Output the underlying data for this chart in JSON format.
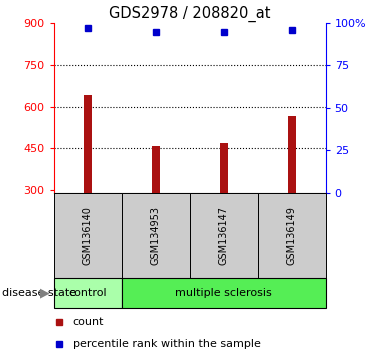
{
  "title": "GDS2978 / 208820_at",
  "samples": [
    "GSM136140",
    "GSM134953",
    "GSM136147",
    "GSM136149"
  ],
  "bar_values": [
    640,
    460,
    468,
    565
  ],
  "bar_bottom": 290,
  "percentile_values": [
    97,
    95,
    95,
    96
  ],
  "bar_color": "#aa1111",
  "point_color": "#0000cc",
  "ylim_left": [
    290,
    900
  ],
  "ylim_right": [
    0,
    100
  ],
  "yticks_left": [
    300,
    450,
    600,
    750,
    900
  ],
  "yticks_right": [
    0,
    25,
    50,
    75,
    100
  ],
  "ytick_labels_right": [
    "0",
    "25",
    "50",
    "75",
    "100%"
  ],
  "hlines": [
    450,
    600,
    750
  ],
  "group_label": "disease state",
  "control_label": "control",
  "ms_label": "multiple sclerosis",
  "control_color": "#aaffaa",
  "ms_color": "#55ee55",
  "legend_count_label": "count",
  "legend_percentile_label": "percentile rank within the sample",
  "bg_color": "#ffffff",
  "sample_box_color": "#cccccc",
  "bar_width": 0.12,
  "x_positions": [
    0,
    1,
    2,
    3
  ]
}
